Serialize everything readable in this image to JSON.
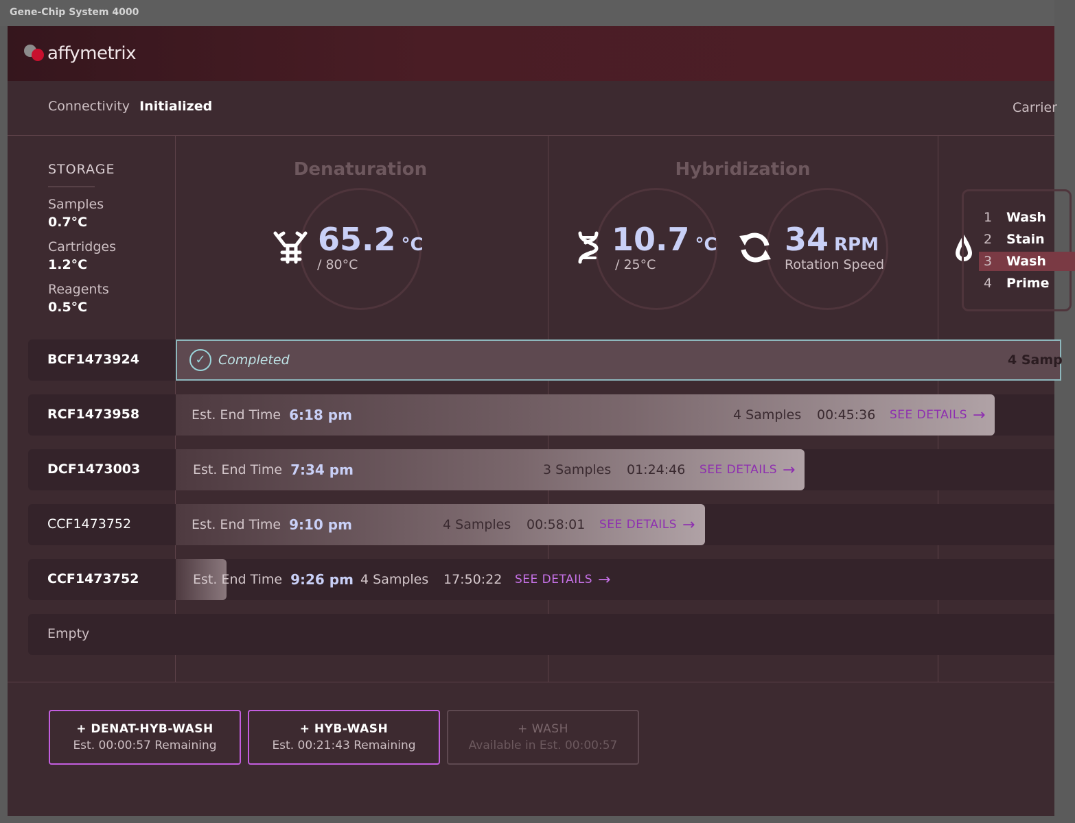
{
  "window": {
    "title": "Gene-Chip System 4000"
  },
  "header": {
    "logo_text": "affymetrix",
    "brand_color": "#c8102e"
  },
  "status": {
    "connectivity_label": "Connectivity",
    "connectivity_value": "Initialized",
    "carrier_label": "Carrier"
  },
  "storage": {
    "title": "STORAGE",
    "items": [
      {
        "name": "Samples",
        "temp": "0.7°C"
      },
      {
        "name": "Cartridges",
        "temp": "1.2°C"
      },
      {
        "name": "Reagents",
        "temp": "0.5°C"
      }
    ]
  },
  "denaturation": {
    "title": "Denaturation",
    "value": "65.2",
    "unit": "°C",
    "target": "/ 80°C",
    "icon": "denature-icon"
  },
  "hybridization": {
    "title": "Hybridization",
    "temp_value": "10.7",
    "temp_unit": "°C",
    "temp_target": "/ 25°C",
    "temp_icon": "dna-icon",
    "rpm_value": "34",
    "rpm_unit": "RPM",
    "rpm_label": "Rotation Speed",
    "rpm_icon": "rotation-icon"
  },
  "wash": {
    "icon": "droplet-icon",
    "steps": [
      {
        "n": "1",
        "name": "Wash"
      },
      {
        "n": "2",
        "name": "Stain"
      },
      {
        "n": "3",
        "name": "Wash"
      },
      {
        "n": "4",
        "name": "Prime"
      }
    ],
    "active_step": 3
  },
  "cartridges": [
    {
      "id": "BCF1473924",
      "status": "Completed",
      "samples": "4 Samp"
    },
    {
      "id": "RCF1473958",
      "end_label": "Est. End Time",
      "end_time": "6:18 pm",
      "samples": "4 Samples",
      "duration": "00:45:36",
      "details": "SEE DETAILS"
    },
    {
      "id": "DCF1473003",
      "end_label": "Est. End Time",
      "end_time": "7:34 pm",
      "samples": "3 Samples",
      "duration": "01:24:46",
      "details": "SEE DETAILS"
    },
    {
      "id": "CCF1473752",
      "end_label": "Est. End Time",
      "end_time": "9:10 pm",
      "samples": "4 Samples",
      "duration": "00:58:01",
      "details": "SEE DETAILS"
    },
    {
      "id": "CCF1473752",
      "end_label": "Est. End Time",
      "end_time": "9:26 pm",
      "samples": "4 Samples",
      "duration": "17:50:22",
      "details": "SEE DETAILS"
    },
    {
      "id": "Empty"
    }
  ],
  "actions": [
    {
      "label": "+ DENAT-HYB-WASH",
      "sub": "Est. 00:00:57 Remaining",
      "enabled": true
    },
    {
      "label": "+ HYB-WASH",
      "sub": "Est. 00:21:43 Remaining",
      "enabled": true
    },
    {
      "label": "+ WASH",
      "sub": "Available in Est. 00:00:57",
      "enabled": false
    }
  ]
}
